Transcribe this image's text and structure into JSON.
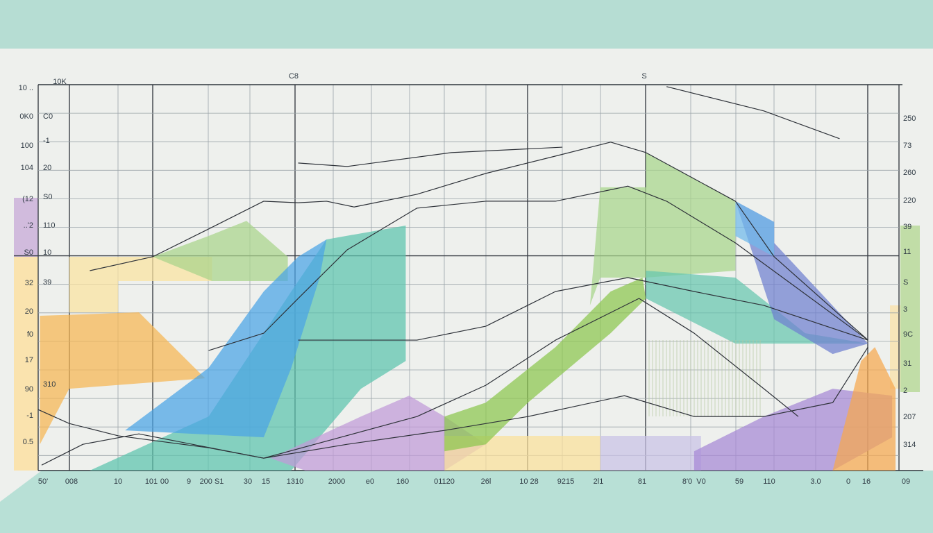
{
  "chart_data": {
    "type": "area",
    "title": "",
    "xlabel": "",
    "ylabel": "",
    "xlim": [
      0,
      100
    ],
    "ylim": [
      0,
      100
    ],
    "grid": true,
    "top_labels": [
      "10K",
      "C8",
      "S"
    ],
    "left_outer_ticks": [
      "10 ..",
      "0K0",
      "100",
      "104",
      "(12",
      "..'2",
      "S0",
      "32",
      "20",
      "f0",
      "17",
      "90",
      "-1",
      "0.5"
    ],
    "left_inner_ticks": [
      "C0",
      "-1",
      "20",
      "S0",
      "110",
      "10",
      "39",
      "310"
    ],
    "right_ticks": [
      "250",
      "73",
      "260",
      "220",
      "39",
      "11",
      "S",
      "3",
      "9C",
      "31",
      "2",
      "207",
      "314"
    ],
    "bottom_ticks": [
      "50'",
      "008",
      "10",
      "101",
      "00",
      "9",
      "200 S1",
      "30",
      "15",
      "1310",
      "2000",
      "e0",
      "160",
      "01120",
      "26l",
      "10 28",
      "9215",
      "2l1",
      "81",
      "8'0",
      "V0",
      "59",
      "110",
      "3.0",
      "0",
      "16",
      "09"
    ],
    "areas": [
      {
        "name": "left-orange",
        "color": "#f6b552",
        "points": [
          [
            0.2,
            40.1
          ],
          [
            11.7,
            41
          ],
          [
            19.4,
            23.9
          ],
          [
            3.6,
            21.2
          ],
          [
            0.2,
            6.8
          ]
        ]
      },
      {
        "name": "left-yellow",
        "color": "#fbe3a0",
        "points": [
          [
            3.6,
            55.4
          ],
          [
            20.2,
            55.4
          ],
          [
            20.2,
            49.1
          ],
          [
            9.3,
            49.1
          ],
          [
            9.3,
            41
          ],
          [
            3.6,
            41
          ]
        ]
      },
      {
        "name": "left-green",
        "color": "#a9d48a",
        "points": [
          [
            13.3,
            55.4
          ],
          [
            19.8,
            60.8
          ],
          [
            24.2,
            64.7
          ],
          [
            29,
            55.4
          ],
          [
            29,
            49.1
          ],
          [
            20.2,
            49.1
          ]
        ]
      },
      {
        "name": "teal-main",
        "color": "#5cc3ad",
        "points": [
          [
            6,
            0
          ],
          [
            19.8,
            14
          ],
          [
            29.4,
            46.4
          ],
          [
            33.5,
            59.9
          ],
          [
            42.7,
            63.5
          ],
          [
            42.7,
            28.4
          ],
          [
            37.5,
            21.2
          ],
          [
            29.4,
            0
          ]
        ]
      },
      {
        "name": "blue-wedge",
        "color": "#4aa3e6",
        "points": [
          [
            10.1,
            10.4
          ],
          [
            19.8,
            26.6
          ],
          [
            26.2,
            46.4
          ],
          [
            30.2,
            55.4
          ],
          [
            33.5,
            59.9
          ],
          [
            32.7,
            50
          ],
          [
            29.4,
            26.6
          ],
          [
            26.2,
            8.6
          ]
        ]
      },
      {
        "name": "purple-middle",
        "color": "#c19ad8",
        "points": [
          [
            27,
            3.2
          ],
          [
            37.5,
            14
          ],
          [
            43.1,
            19.4
          ],
          [
            47.2,
            14
          ],
          [
            52,
            6.8
          ],
          [
            47.2,
            0
          ],
          [
            31,
            0
          ]
        ]
      },
      {
        "name": "yellow-bottom",
        "color": "#fbe09a",
        "points": [
          [
            47.2,
            9
          ],
          [
            65.3,
            9
          ],
          [
            65.3,
            0
          ],
          [
            47.2,
            0
          ]
        ]
      },
      {
        "name": "lilac-bottom",
        "color": "#c9c2e6",
        "points": [
          [
            65.3,
            9
          ],
          [
            77,
            9
          ],
          [
            77,
            0
          ],
          [
            65.3,
            0
          ]
        ]
      },
      {
        "name": "green-diagonal",
        "color": "#8cc64e",
        "points": [
          [
            47.2,
            14
          ],
          [
            52,
            17.6
          ],
          [
            60.1,
            32
          ],
          [
            66.5,
            46.4
          ],
          [
            70.2,
            50
          ],
          [
            70.6,
            44.6
          ],
          [
            66.5,
            35.6
          ],
          [
            56.9,
            17.6
          ],
          [
            52,
            6.8
          ],
          [
            47.2,
            5
          ]
        ]
      },
      {
        "name": "green-right",
        "color": "#a8d68a",
        "points": [
          [
            65.3,
            73.4
          ],
          [
            70.6,
            73.4
          ],
          [
            70.6,
            82.4
          ],
          [
            81,
            69.8
          ],
          [
            81,
            51.8
          ],
          [
            70.6,
            50
          ],
          [
            65.3,
            50
          ],
          [
            64.1,
            42.8
          ]
        ]
      },
      {
        "name": "teal-right",
        "color": "#67c6ae",
        "points": [
          [
            70.6,
            51.8
          ],
          [
            81,
            50
          ],
          [
            89.1,
            35.6
          ],
          [
            96.4,
            32.9
          ],
          [
            81,
            32.9
          ],
          [
            70.6,
            44.6
          ]
        ]
      },
      {
        "name": "violet-right",
        "color": "#6f7fd0",
        "points": [
          [
            81,
            69.8
          ],
          [
            85.5,
            64.4
          ],
          [
            85.5,
            59
          ],
          [
            96.4,
            32.9
          ],
          [
            92.3,
            30.2
          ],
          [
            85.5,
            39.2
          ]
        ]
      },
      {
        "name": "lightblue-right",
        "color": "#6fb8ea",
        "points": [
          [
            81,
            69.8
          ],
          [
            85.5,
            64.4
          ],
          [
            85.5,
            55.4
          ],
          [
            81,
            60.8
          ]
        ]
      },
      {
        "name": "purple-right",
        "color": "#a688d6",
        "points": [
          [
            76.2,
            5
          ],
          [
            84.3,
            14
          ],
          [
            92.3,
            21.2
          ],
          [
            99.2,
            19.4
          ],
          [
            99.2,
            8.6
          ],
          [
            92.3,
            0
          ],
          [
            76.2,
            0
          ]
        ]
      },
      {
        "name": "orange-right",
        "color": "#f7a84e",
        "points": [
          [
            92.3,
            0
          ],
          [
            95.6,
            28.4
          ],
          [
            97.2,
            32
          ],
          [
            99.6,
            21.2
          ],
          [
            99.6,
            0
          ]
        ]
      }
    ],
    "lines": [
      {
        "name": "line-1",
        "points": [
          [
            0,
            15.8
          ],
          [
            3.6,
            12.2
          ],
          [
            9.3,
            9
          ],
          [
            19.8,
            5.9
          ],
          [
            26.2,
            3.2
          ],
          [
            35.9,
            6.8
          ],
          [
            47.2,
            10.4
          ],
          [
            56.9,
            14
          ],
          [
            68.1,
            19.4
          ],
          [
            76.2,
            14
          ],
          [
            84.3,
            14
          ],
          [
            92.3,
            17.6
          ],
          [
            96.4,
            32
          ]
        ]
      },
      {
        "name": "line-2",
        "points": [
          [
            0.4,
            1.4
          ],
          [
            5.2,
            6.8
          ],
          [
            11.7,
            9.5
          ],
          [
            26.2,
            3.2
          ],
          [
            44,
            14
          ],
          [
            52,
            22.1
          ],
          [
            60.1,
            33.8
          ],
          [
            69.8,
            44.6
          ],
          [
            76.2,
            35.6
          ],
          [
            84.3,
            21.2
          ],
          [
            88.3,
            14
          ]
        ]
      },
      {
        "name": "line-3",
        "points": [
          [
            6,
            51.8
          ],
          [
            13.3,
            55.4
          ],
          [
            19.8,
            62.6
          ],
          [
            26.2,
            69.8
          ],
          [
            30.2,
            69.4
          ],
          [
            33.5,
            69.8
          ],
          [
            36.7,
            68.3
          ],
          [
            44,
            71.6
          ],
          [
            52,
            77
          ],
          [
            60.1,
            81.5
          ],
          [
            66.5,
            85.1
          ],
          [
            70.6,
            82.4
          ],
          [
            81,
            69.8
          ],
          [
            85.5,
            55.4
          ],
          [
            96.4,
            33.8
          ]
        ]
      },
      {
        "name": "line-4",
        "points": [
          [
            30.2,
            79.7
          ],
          [
            35.9,
            78.8
          ],
          [
            48,
            82.4
          ],
          [
            60.9,
            83.8
          ]
        ]
      },
      {
        "name": "line-5",
        "points": [
          [
            19.8,
            31.1
          ],
          [
            26.2,
            35.6
          ],
          [
            30.2,
            44.6
          ],
          [
            35.9,
            57.2
          ],
          [
            44,
            68
          ],
          [
            52,
            69.8
          ],
          [
            60.1,
            69.8
          ],
          [
            68.5,
            73.7
          ],
          [
            73,
            69.8
          ],
          [
            81,
            59
          ],
          [
            96.4,
            33.8
          ]
        ]
      },
      {
        "name": "line-6",
        "points": [
          [
            30.2,
            33.8
          ],
          [
            44,
            33.8
          ],
          [
            52,
            37.4
          ],
          [
            60.1,
            46.4
          ],
          [
            68.5,
            50
          ],
          [
            76.2,
            46.4
          ],
          [
            84.3,
            42.8
          ],
          [
            96.4,
            33.8
          ]
        ]
      },
      {
        "name": "line-7",
        "points": [
          [
            73,
            99.5
          ],
          [
            84.3,
            93.2
          ],
          [
            93.1,
            86
          ]
        ]
      }
    ]
  }
}
